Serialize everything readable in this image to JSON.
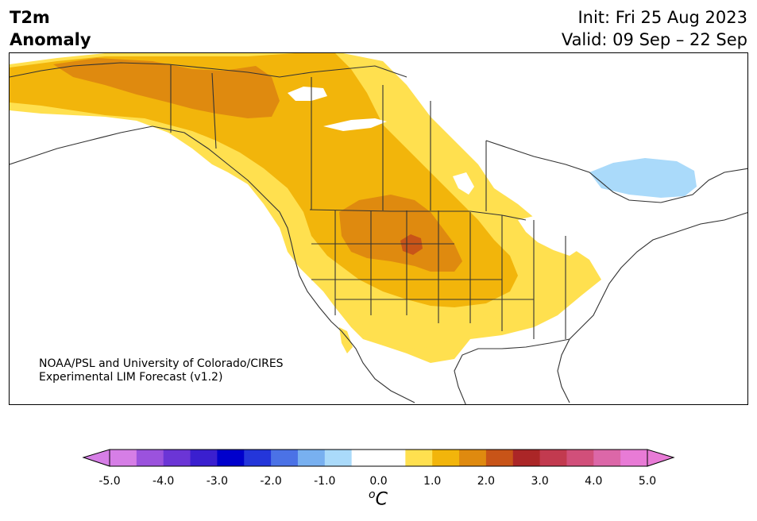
{
  "title": {
    "left_line1": "T2m",
    "left_line2": "Anomaly",
    "init": "Init: Fri 25 Aug 2023",
    "valid": "Valid: 09 Sep – 22 Sep"
  },
  "credit": {
    "line1": "NOAA/PSL and University of Colorado/CIRES",
    "line2": "Experimental LIM Forecast (v1.2)"
  },
  "colorbar": {
    "unit_base": "C",
    "unit_sup": "o",
    "ticks": [
      "-5.0",
      "-4.0",
      "-3.0",
      "-2.0",
      "-1.0",
      "0.0",
      "1.0",
      "2.0",
      "3.0",
      "4.0",
      "5.0"
    ],
    "colors": [
      "#d67ee6",
      "#9b52dd",
      "#6b35d6",
      "#3a1fcf",
      "#0000cc",
      "#2436da",
      "#4b72e6",
      "#78b0f0",
      "#aadafa",
      "#ffffff",
      "#ffffff",
      "#ffe04f",
      "#f2b50b",
      "#df8a0f",
      "#c85418",
      "#ab2627",
      "#c23a4f",
      "#d14f7a",
      "#dc67a8",
      "#e87bd6"
    ],
    "under_color": "#d67ee6",
    "over_color": "#e87bd6"
  },
  "map": {
    "legend_colors": {
      "land": "#ffffff",
      "anom_1": "#ffe04f",
      "anom_2": "#f2b50b",
      "anom_3": "#df8a0f",
      "anom_4": "#c85418",
      "neg_1": "#aadafa",
      "lakes": "#ffffff",
      "borders": "#333333"
    }
  }
}
